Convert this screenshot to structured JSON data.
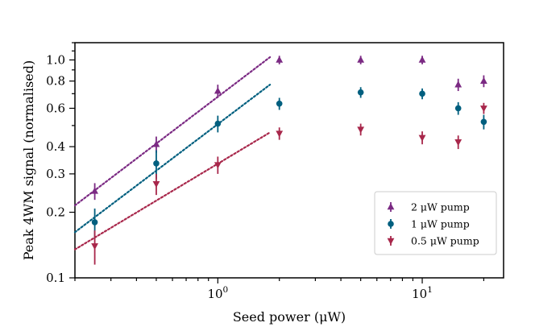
{
  "chart_data": {
    "type": "scatter",
    "title": "",
    "xlabel": "Seed power (μW)",
    "ylabel": "Peak 4WM signal (normalised)",
    "xscale": "log",
    "yscale": "log",
    "xlim": [
      0.2,
      25
    ],
    "ylim": [
      0.1,
      1.2
    ],
    "x_major_ticks": [
      {
        "value": 1,
        "base": "10",
        "exp": "0"
      },
      {
        "value": 10,
        "base": "10",
        "exp": "1"
      }
    ],
    "y_tick_values": [
      0.1,
      0.2,
      0.3,
      0.4,
      0.6,
      0.8,
      1.0
    ],
    "y_tick_labels": [
      "0.1",
      "0.2",
      "0.3",
      "0.4",
      "0.6",
      "0.8",
      "1.0"
    ],
    "legend_position": "lower-right",
    "series": [
      {
        "name": "2 μW pump",
        "legend_label": "2 μW pump",
        "color": "#7b2a83",
        "marker": "triangle-up",
        "x": [
          0.25,
          0.5,
          1.0,
          2.0,
          5.0,
          10.0,
          15.0,
          20.0
        ],
        "y": [
          0.25,
          0.41,
          0.72,
          1.0,
          1.0,
          1.0,
          0.77,
          0.8
        ],
        "yerr": [
          0.022,
          0.035,
          0.05,
          0.045,
          0.045,
          0.045,
          0.05,
          0.05
        ],
        "fit": {
          "x_range": [
            0.2,
            1.8
          ],
          "y_range": [
            0.215,
            1.03
          ]
        }
      },
      {
        "name": "1 μW pump",
        "legend_label": "1 μW pump",
        "color": "#005f7f",
        "marker": "circle",
        "x": [
          0.25,
          0.5,
          1.0,
          2.0,
          5.0,
          10.0,
          15.0,
          20.0
        ],
        "y": [
          0.18,
          0.335,
          0.51,
          0.63,
          0.71,
          0.7,
          0.6,
          0.52
        ],
        "yerr": [
          0.028,
          0.05,
          0.045,
          0.04,
          0.04,
          0.04,
          0.04,
          0.04
        ],
        "fit": {
          "x_range": [
            0.2,
            1.8
          ],
          "y_range": [
            0.162,
            0.77
          ]
        }
      },
      {
        "name": "0.5 μW pump",
        "legend_label": "0.5 μW pump",
        "color": "#a8274b",
        "marker": "triangle-down",
        "x": [
          0.25,
          0.5,
          1.0,
          2.0,
          5.0,
          10.0,
          15.0,
          20.0
        ],
        "y": [
          0.14,
          0.27,
          0.33,
          0.46,
          0.48,
          0.44,
          0.42,
          0.6
        ],
        "yerr": [
          0.025,
          0.03,
          0.03,
          0.03,
          0.03,
          0.03,
          0.03,
          0.035
        ],
        "fit": {
          "x_range": [
            0.2,
            1.8
          ],
          "y_range": [
            0.135,
            0.465
          ]
        }
      }
    ]
  }
}
